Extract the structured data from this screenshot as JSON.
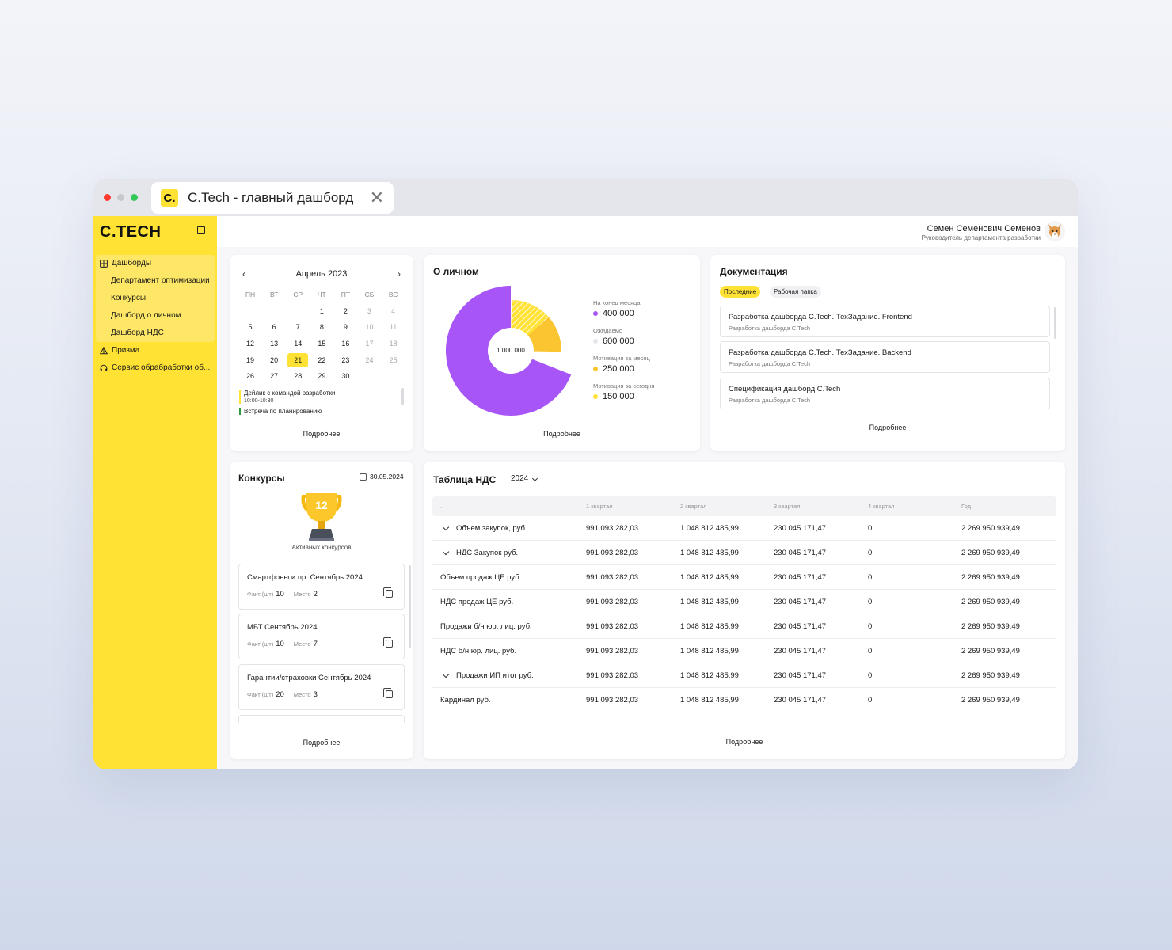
{
  "browser": {
    "tab_logo": "C.",
    "tab_title": "C.Tech - главный дашборд",
    "close_glyph": "✕"
  },
  "sidebar": {
    "brand": "C.TECH",
    "items": [
      {
        "label": "Дашборды",
        "icon": "grid-icon"
      },
      {
        "label": "Департамент оптимизации"
      },
      {
        "label": "Конкурсы"
      },
      {
        "label": "Дашборд о личном"
      },
      {
        "label": "Дашборд НДС"
      },
      {
        "label": "Призма",
        "icon": "prism-icon"
      },
      {
        "label": "Сервис обрабработки об...",
        "icon": "headset-icon"
      }
    ]
  },
  "user": {
    "name": "Семен Семенович Семенов",
    "role": "Руководитель департамента разработки"
  },
  "calendar": {
    "month": "Апрель 2023",
    "weekdays": [
      "ПН",
      "ВТ",
      "СР",
      "ЧТ",
      "ПТ",
      "СБ",
      "ВС"
    ],
    "days": [
      "",
      "",
      "",
      "1",
      "2",
      "3",
      "4",
      "5",
      "6",
      "7",
      "8",
      "9",
      "10",
      "11",
      "12",
      "13",
      "14",
      "15",
      "16",
      "17",
      "18",
      "19",
      "20",
      "21",
      "22",
      "23",
      "24",
      "25",
      "26",
      "27",
      "28",
      "29",
      "30"
    ],
    "today": "21",
    "events": [
      {
        "title": "Дейлик с командой разработки",
        "time": "10:00-10:30",
        "color": "#ffe234"
      },
      {
        "title": "Встреча по планированию",
        "time": "",
        "color": "#2e9a3f"
      }
    ],
    "more": "Подробнее"
  },
  "personal": {
    "title": "О личном",
    "center_label": "1 000 000",
    "legend": [
      {
        "label": "На конец месяца",
        "value": "400 000",
        "color": "#a855f7"
      },
      {
        "label": "Ожидаемо",
        "value": "600 000",
        "color": "#e5e5ea"
      },
      {
        "label": "Мотивация за месяц",
        "value": "250 000",
        "color": "#fbc531"
      },
      {
        "label": "Мотивация за сегодня",
        "value": "150 000",
        "color": "#ffe234"
      }
    ],
    "more": "Подробнее"
  },
  "docs": {
    "title": "Документация",
    "tabs": [
      "Последние",
      "Рабочая папка"
    ],
    "items": [
      {
        "title": "Разработка дашборда C.Tech. ТехЗадание. Frontend",
        "sub": "Разработка дашборда C.Tech"
      },
      {
        "title": "Разработка дашборда C.Tech. ТехЗадание. Backend",
        "sub": "Разработка дашборда C.Tech"
      },
      {
        "title": "Спецификация дашборд C.Tech",
        "sub": "Разработка дашборда C.Tech"
      }
    ],
    "more": "Подробнее"
  },
  "contests": {
    "title": "Конкурсы",
    "date": "30.05.2024",
    "count": "12",
    "count_label": "Активных конкурсов",
    "fact_label": "Факт (шт)",
    "place_label": "Место",
    "items": [
      {
        "title": "Смартфоны и пр. Сентябрь 2024",
        "fact": "10",
        "place": "2"
      },
      {
        "title": "МБТ Сентябрь 2024",
        "fact": "10",
        "place": "7"
      },
      {
        "title": "Гарантии/страховки Сентябрь 2024",
        "fact": "20",
        "place": "3"
      }
    ],
    "more": "Подробнее"
  },
  "vat": {
    "title": "Таблица НДС",
    "year": "2024",
    "columns": [
      ".",
      "1 квартал",
      "2 квартал",
      "3 квартал",
      "4 квартал",
      "Год"
    ],
    "rows": [
      {
        "label": "Объем закупок, руб.",
        "expand": true,
        "q1": "991 093 282,03",
        "q2": "1 048 812 485,99",
        "q3": "230 045 171,47",
        "q4": "0",
        "year": "2 269 950 939,49"
      },
      {
        "label": "НДС Закупок руб.",
        "expand": true,
        "q1": "991 093 282,03",
        "q2": "1 048 812 485,99",
        "q3": "230 045 171,47",
        "q4": "0",
        "year": "2 269 950 939,49"
      },
      {
        "label": "Объем продаж ЦЕ руб.",
        "expand": false,
        "q1": "991 093 282,03",
        "q2": "1 048 812 485,99",
        "q3": "230 045 171,47",
        "q4": "0",
        "year": "2 269 950 939,49"
      },
      {
        "label": "НДС продаж ЦЕ руб.",
        "expand": false,
        "q1": "991 093 282,03",
        "q2": "1 048 812 485,99",
        "q3": "230 045 171,47",
        "q4": "0",
        "year": "2 269 950 939,49"
      },
      {
        "label": "Продажи б/н юр. лиц. руб.",
        "expand": false,
        "q1": "991 093 282,03",
        "q2": "1 048 812 485,99",
        "q3": "230 045 171,47",
        "q4": "0",
        "year": "2 269 950 939,49"
      },
      {
        "label": "НДС б/н юр. лиц. руб.",
        "expand": false,
        "q1": "991 093 282,03",
        "q2": "1 048 812 485,99",
        "q3": "230 045 171,47",
        "q4": "0",
        "year": "2 269 950 939,49"
      },
      {
        "label": "Продажи ИП итог руб.",
        "expand": true,
        "q1": "991 093 282,03",
        "q2": "1 048 812 485,99",
        "q3": "230 045 171,47",
        "q4": "0",
        "year": "2 269 950 939,49"
      },
      {
        "label": "Кардинал руб.",
        "expand": false,
        "q1": "991 093 282,03",
        "q2": "1 048 812 485,99",
        "q3": "230 045 171,47",
        "q4": "0",
        "year": "2 269 950 939,49"
      }
    ],
    "more": "Подробнее"
  },
  "colors": {
    "accent": "#ffe234",
    "purple": "#a855f7",
    "orange": "#fbc531",
    "gray": "#e5e5ea"
  }
}
